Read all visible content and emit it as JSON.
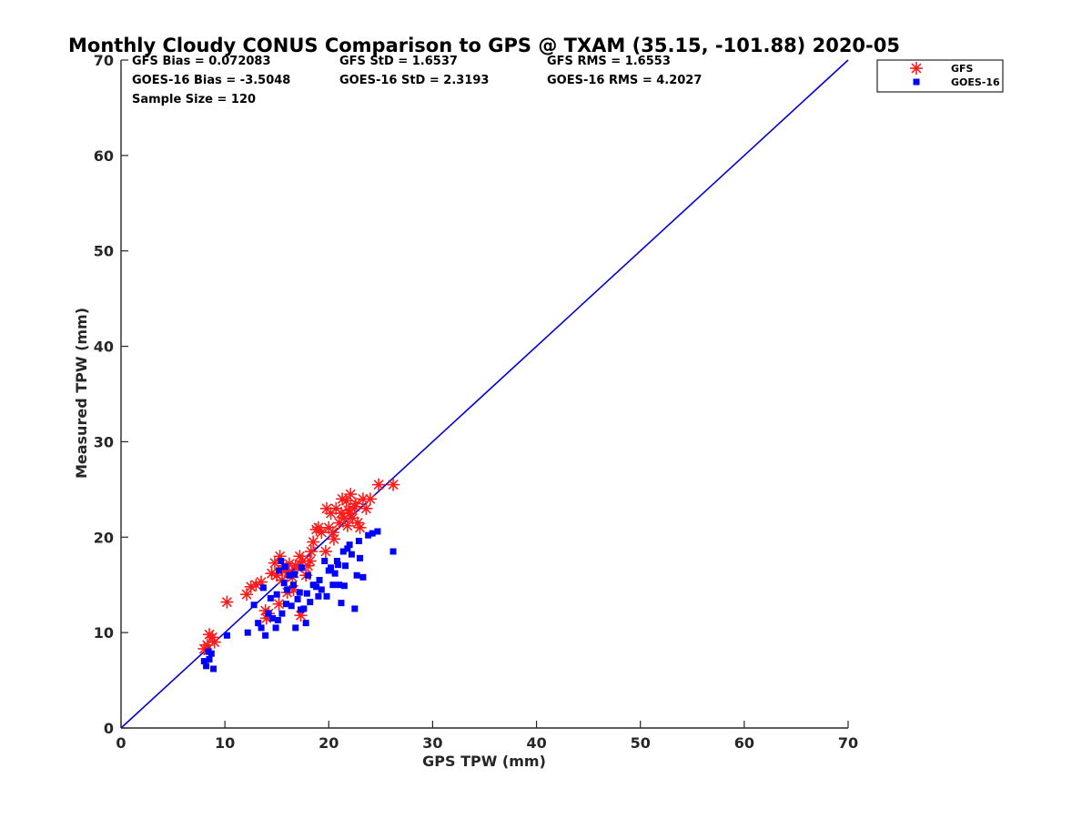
{
  "chart_data": {
    "type": "scatter",
    "title": "Monthly Cloudy CONUS Comparison to GPS @ TXAM (35.15, -101.88) 2020-05",
    "xlabel": "GPS TPW (mm)",
    "ylabel": "Measured TPW (mm)",
    "xlim": [
      0,
      70
    ],
    "ylim": [
      0,
      70
    ],
    "xticks": [
      0,
      10,
      20,
      30,
      40,
      50,
      60,
      70
    ],
    "yticks": [
      0,
      10,
      20,
      30,
      40,
      50,
      60,
      70
    ],
    "grid": false,
    "legend_position": "outside top-right",
    "stats": [
      [
        "GFS Bias = 0.072083",
        "GFS StD = 1.6537",
        "GFS RMS = 1.6553"
      ],
      [
        "GOES-16 Bias = -3.5048",
        "GOES-16 StD = 2.3193",
        "GOES-16 RMS = 4.2027"
      ],
      [
        "Sample Size = 120",
        "",
        ""
      ]
    ],
    "reference_line": {
      "x": [
        0,
        70
      ],
      "y": [
        0,
        70
      ],
      "color": "#0000dd"
    },
    "series": [
      {
        "name": "GFS",
        "marker": "asterisk",
        "color": "#ff1a1a",
        "x": [
          8.0,
          8.5,
          8.8,
          8.3,
          9.0,
          10.2,
          12.1,
          12.5,
          13.0,
          13.5,
          13.9,
          14.2,
          14.5,
          14.8,
          15.0,
          15.3,
          15.5,
          15.6,
          15.8,
          16.0,
          16.2,
          16.5,
          16.8,
          17.0,
          17.2,
          17.5,
          17.8,
          18.0,
          18.3,
          18.5,
          18.8,
          19.0,
          19.3,
          19.7,
          20.0,
          20.2,
          20.5,
          20.7,
          21.0,
          21.2,
          21.3,
          21.5,
          21.7,
          21.8,
          22.0,
          22.1,
          22.3,
          22.5,
          22.8,
          23.0,
          23.3,
          23.6,
          24.0,
          24.8,
          26.2,
          17.3,
          14.0,
          15.2,
          16.6,
          19.8,
          20.4,
          21.9,
          22.6,
          18.2,
          16.1
        ],
        "y": [
          8.3,
          9.8,
          9.5,
          8.7,
          9.0,
          13.2,
          14.0,
          14.8,
          15.0,
          15.3,
          12.3,
          12.0,
          16.2,
          17.3,
          16.0,
          18.0,
          15.5,
          17.0,
          16.5,
          14.2,
          17.2,
          15.8,
          17.0,
          16.8,
          18.0,
          17.5,
          16.0,
          17.0,
          18.5,
          19.5,
          20.8,
          21.0,
          20.5,
          18.5,
          21.0,
          22.5,
          19.8,
          23.0,
          21.5,
          22.5,
          24.0,
          22.0,
          23.8,
          21.2,
          22.5,
          24.5,
          22.0,
          23.2,
          21.5,
          21.0,
          24.0,
          23.0,
          24.0,
          25.5,
          25.5,
          11.8,
          11.5,
          13.0,
          14.5,
          23.0,
          20.5,
          22.8,
          23.5,
          17.5,
          16.3
        ]
      },
      {
        "name": "GOES-16",
        "marker": "square",
        "color": "#0000ff",
        "x": [
          8.0,
          8.2,
          8.5,
          8.7,
          8.9,
          8.4,
          10.2,
          12.2,
          12.8,
          13.2,
          13.5,
          13.9,
          14.2,
          14.6,
          14.9,
          15.0,
          15.2,
          15.4,
          15.5,
          15.7,
          15.9,
          16.0,
          16.2,
          16.4,
          16.6,
          16.8,
          17.0,
          17.2,
          17.4,
          17.6,
          17.8,
          18.0,
          18.2,
          18.5,
          18.8,
          19.0,
          19.3,
          19.6,
          19.8,
          20.0,
          20.2,
          20.4,
          20.6,
          20.8,
          21.0,
          21.2,
          21.4,
          21.6,
          21.8,
          22.0,
          22.2,
          22.5,
          22.7,
          23.0,
          23.3,
          23.8,
          24.2,
          24.7,
          26.2,
          15.1,
          16.7,
          17.3,
          13.7,
          14.4,
          15.8,
          17.9,
          19.1,
          20.9,
          21.5,
          22.9
        ],
        "y": [
          7.0,
          6.5,
          7.2,
          7.8,
          6.2,
          8.0,
          9.7,
          10.0,
          12.9,
          11.0,
          10.5,
          9.7,
          12.0,
          11.5,
          10.5,
          14.0,
          16.5,
          17.5,
          12.0,
          15.2,
          13.0,
          14.5,
          16.0,
          12.8,
          15.0,
          10.5,
          13.5,
          14.2,
          16.8,
          12.5,
          11.0,
          16.0,
          13.2,
          15.0,
          14.8,
          13.8,
          14.5,
          17.5,
          13.8,
          16.5,
          16.8,
          15.0,
          16.2,
          17.5,
          15.0,
          13.1,
          18.5,
          17.0,
          18.8,
          19.2,
          18.2,
          12.5,
          16.0,
          17.8,
          15.8,
          20.2,
          20.4,
          20.6,
          18.5,
          11.3,
          16.1,
          12.4,
          14.7,
          13.6,
          16.9,
          14.1,
          15.5,
          17.1,
          14.9,
          19.6
        ]
      }
    ]
  }
}
